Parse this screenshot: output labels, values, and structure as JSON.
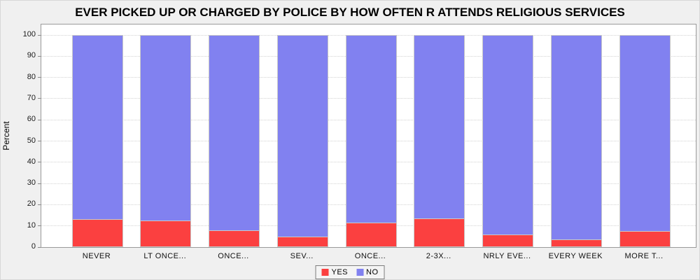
{
  "title": "EVER PICKED UP OR CHARGED BY POLICE BY HOW OFTEN R ATTENDS RELIGIOUS SERVICES",
  "chart_data": {
    "type": "bar",
    "stacked": true,
    "title": "EVER PICKED UP OR CHARGED BY POLICE BY HOW OFTEN R ATTENDS RELIGIOUS SERVICES",
    "categories": [
      "NEVER",
      "LT ONCE...",
      "ONCE...",
      "SEV...",
      "ONCE...",
      "2-3X...",
      "NRLY EVE...",
      "EVERY WEEK",
      "MORE T..."
    ],
    "series": [
      {
        "name": "YES",
        "color": "#fb4040",
        "values": [
          13.2,
          12.4,
          8.0,
          5.0,
          11.4,
          13.5,
          6.0,
          3.5,
          7.6
        ]
      },
      {
        "name": "NO",
        "color": "#8181f0",
        "values": [
          86.8,
          87.6,
          92.0,
          95.0,
          88.6,
          86.5,
          94.0,
          96.5,
          92.4
        ]
      }
    ],
    "xlabel": "",
    "ylabel": "Percent",
    "ylim": [
      0,
      100
    ],
    "yticks": [
      0,
      10,
      20,
      30,
      40,
      50,
      60,
      70,
      80,
      90,
      100
    ],
    "grid": true,
    "legend_position": "bottom-center"
  },
  "colors": {
    "background": "#f0f0f0",
    "plot_background": "#ffffff",
    "plot_border": "#9a9a9a",
    "gridline": "#d2d2d2",
    "bar_outline": "#c9c9c9",
    "yes": "#fb4040",
    "no": "#8181f0",
    "text": "#000000"
  }
}
